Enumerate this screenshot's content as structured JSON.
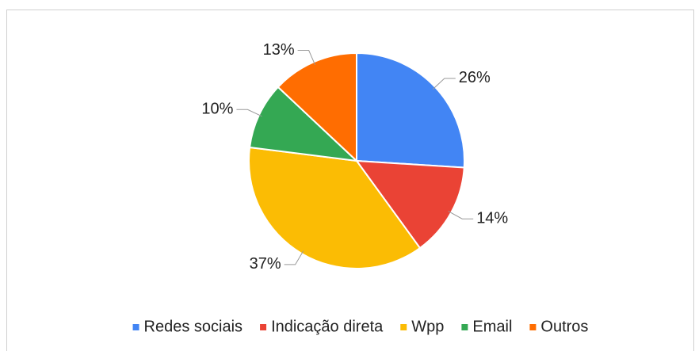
{
  "chart_data": {
    "type": "pie",
    "categories": [
      "Redes sociais",
      "Indicação direta",
      "Wpp",
      "Email",
      "Outros"
    ],
    "values": [
      26,
      14,
      37,
      10,
      13
    ],
    "value_labels": [
      "26%",
      "14%",
      "37%",
      "10%",
      "13%"
    ],
    "colors": [
      "#4285f4",
      "#ea4335",
      "#fbbc04",
      "#34a853",
      "#ff6d01"
    ],
    "legend": "bottom"
  }
}
